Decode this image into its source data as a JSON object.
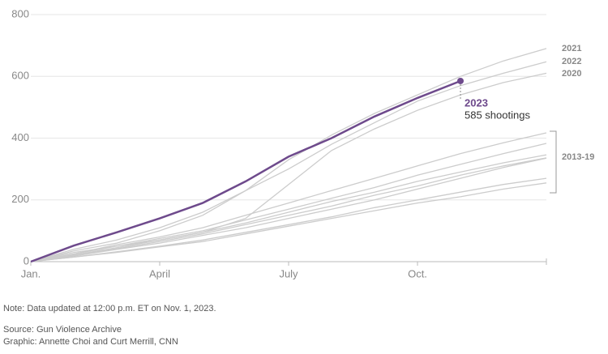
{
  "chart_data": {
    "type": "line",
    "x": [
      0,
      1,
      2,
      3,
      4,
      5,
      6,
      7,
      8,
      9,
      10,
      11,
      12
    ],
    "xlim": [
      0,
      12
    ],
    "xticks": [
      {
        "value": 0,
        "label": "Jan."
      },
      {
        "value": 3,
        "label": "April"
      },
      {
        "value": 6,
        "label": "July"
      },
      {
        "value": 9,
        "label": "Oct."
      }
    ],
    "ylim": [
      0,
      800
    ],
    "yticks": [
      0,
      200,
      400,
      600,
      800
    ],
    "grid": true,
    "series": [
      {
        "name": "2023",
        "color": "#6e4a8c",
        "values": [
          0,
          52,
          95,
          140,
          190,
          260,
          340,
          400,
          470,
          530,
          585,
          null,
          null
        ]
      },
      {
        "name": "2021",
        "color": "#cccccc",
        "values": [
          0,
          40,
          70,
          110,
          160,
          230,
          330,
          410,
          480,
          540,
          600,
          650,
          690
        ]
      },
      {
        "name": "2022",
        "color": "#cccccc",
        "values": [
          0,
          35,
          60,
          100,
          150,
          230,
          300,
          380,
          450,
          520,
          570,
          610,
          647
        ]
      },
      {
        "name": "2020",
        "color": "#cccccc",
        "values": [
          0,
          30,
          50,
          70,
          95,
          140,
          250,
          360,
          430,
          490,
          540,
          580,
          610
        ]
      },
      {
        "color": "#cccccc",
        "values": [
          0,
          25,
          55,
          80,
          110,
          150,
          190,
          230,
          270,
          310,
          350,
          385,
          417
        ]
      },
      {
        "color": "#cccccc",
        "values": [
          0,
          25,
          50,
          75,
          100,
          135,
          170,
          205,
          240,
          280,
          315,
          350,
          383
        ]
      },
      {
        "color": "#cccccc",
        "values": [
          0,
          22,
          45,
          70,
          95,
          125,
          160,
          195,
          225,
          260,
          290,
          320,
          346
        ]
      },
      {
        "color": "#cccccc",
        "values": [
          0,
          20,
          42,
          65,
          90,
          120,
          150,
          180,
          215,
          245,
          280,
          310,
          336
        ]
      },
      {
        "color": "#cccccc",
        "values": [
          0,
          18,
          40,
          60,
          85,
          110,
          140,
          170,
          200,
          235,
          270,
          305,
          335
        ]
      },
      {
        "color": "#cccccc",
        "values": [
          0,
          15,
          32,
          50,
          70,
          95,
          120,
          145,
          175,
          200,
          225,
          250,
          270
        ]
      },
      {
        "color": "#cccccc",
        "values": [
          0,
          15,
          30,
          48,
          65,
          90,
          115,
          140,
          165,
          190,
          210,
          235,
          255
        ]
      }
    ],
    "group_label": "2013-19",
    "annotation": "585 shootings",
    "note": "Note: Data updated at 12:00 p.m. ET on Nov. 1, 2023.",
    "source": "Source: Gun Violence Archive",
    "credit": "Graphic: Annette Choi and Curt Merrill, CNN"
  }
}
